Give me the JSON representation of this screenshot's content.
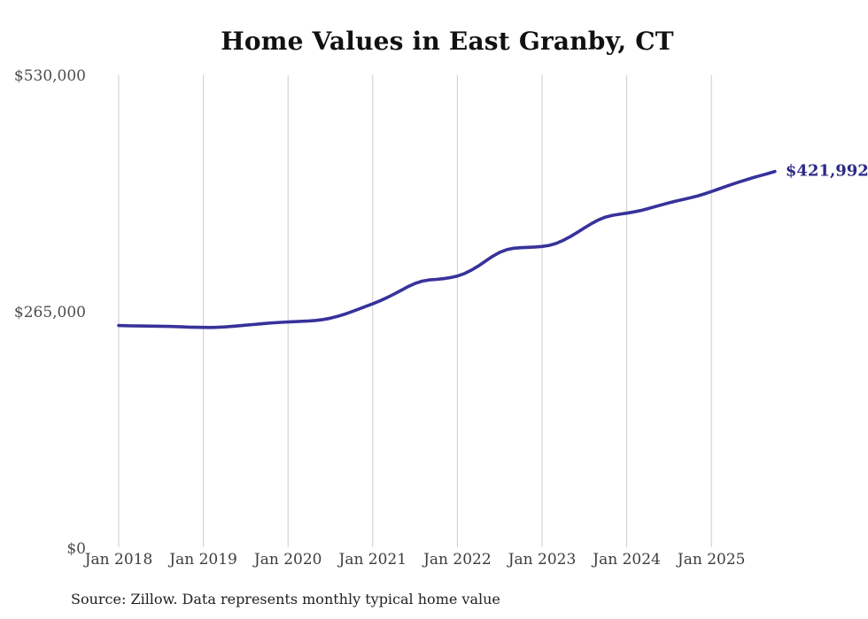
{
  "chart_data": {
    "type": "line",
    "title": "Home Values in East Granby, CT",
    "xlabel": "",
    "ylabel": "",
    "ylim": [
      0,
      530000
    ],
    "y_ticks": [
      0,
      265000,
      530000
    ],
    "y_tick_labels": [
      "$0",
      "$265,000",
      "$530,000"
    ],
    "x_tick_labels": [
      "Jan 2018",
      "Jan 2019",
      "Jan 2020",
      "Jan 2021",
      "Jan 2022",
      "Jan 2023",
      "Jan 2024",
      "Jan 2025"
    ],
    "x_interval": "monthly",
    "x_range": "Jan 2018 - Oct 2025",
    "grid": "vertical-only",
    "legend": "none",
    "end_label": "$421,992",
    "end_value": 421992,
    "series": [
      {
        "name": "Monthly typical home value",
        "start": "Jan 2018",
        "frequency": "monthly",
        "values": [
          249000,
          248800,
          248600,
          248500,
          248400,
          248300,
          248200,
          248000,
          247800,
          247500,
          247200,
          247000,
          246900,
          246800,
          247000,
          247400,
          248000,
          248700,
          249400,
          250100,
          250800,
          251500,
          252100,
          252600,
          253000,
          253400,
          253800,
          254200,
          254800,
          255800,
          257200,
          259200,
          261600,
          264400,
          267400,
          270400,
          273400,
          276600,
          280200,
          284200,
          288400,
          292600,
          296200,
          298800,
          300200,
          300800,
          301600,
          302800,
          304600,
          307400,
          311200,
          316000,
          321400,
          326800,
          331200,
          334200,
          335800,
          336400,
          336800,
          337200,
          337800,
          339000,
          341200,
          344600,
          348800,
          353600,
          358600,
          363400,
          367600,
          370800,
          372800,
          374000,
          375200,
          376600,
          378200,
          380200,
          382400,
          384600,
          386800,
          388800,
          390600,
          392400,
          394400,
          396800,
          399400,
          402200,
          405000,
          407800,
          410400,
          412800,
          415200,
          417400,
          419600,
          421992
        ]
      }
    ]
  },
  "footer": {
    "source_text": "Source: Zillow. Data represents monthly typical home value"
  },
  "colors": {
    "line": "#37329b",
    "end_label": "#2b2987",
    "grid": "#cbcbcb",
    "axis_text": "#4d4d4d",
    "title": "#111111",
    "background": "#ffffff"
  }
}
